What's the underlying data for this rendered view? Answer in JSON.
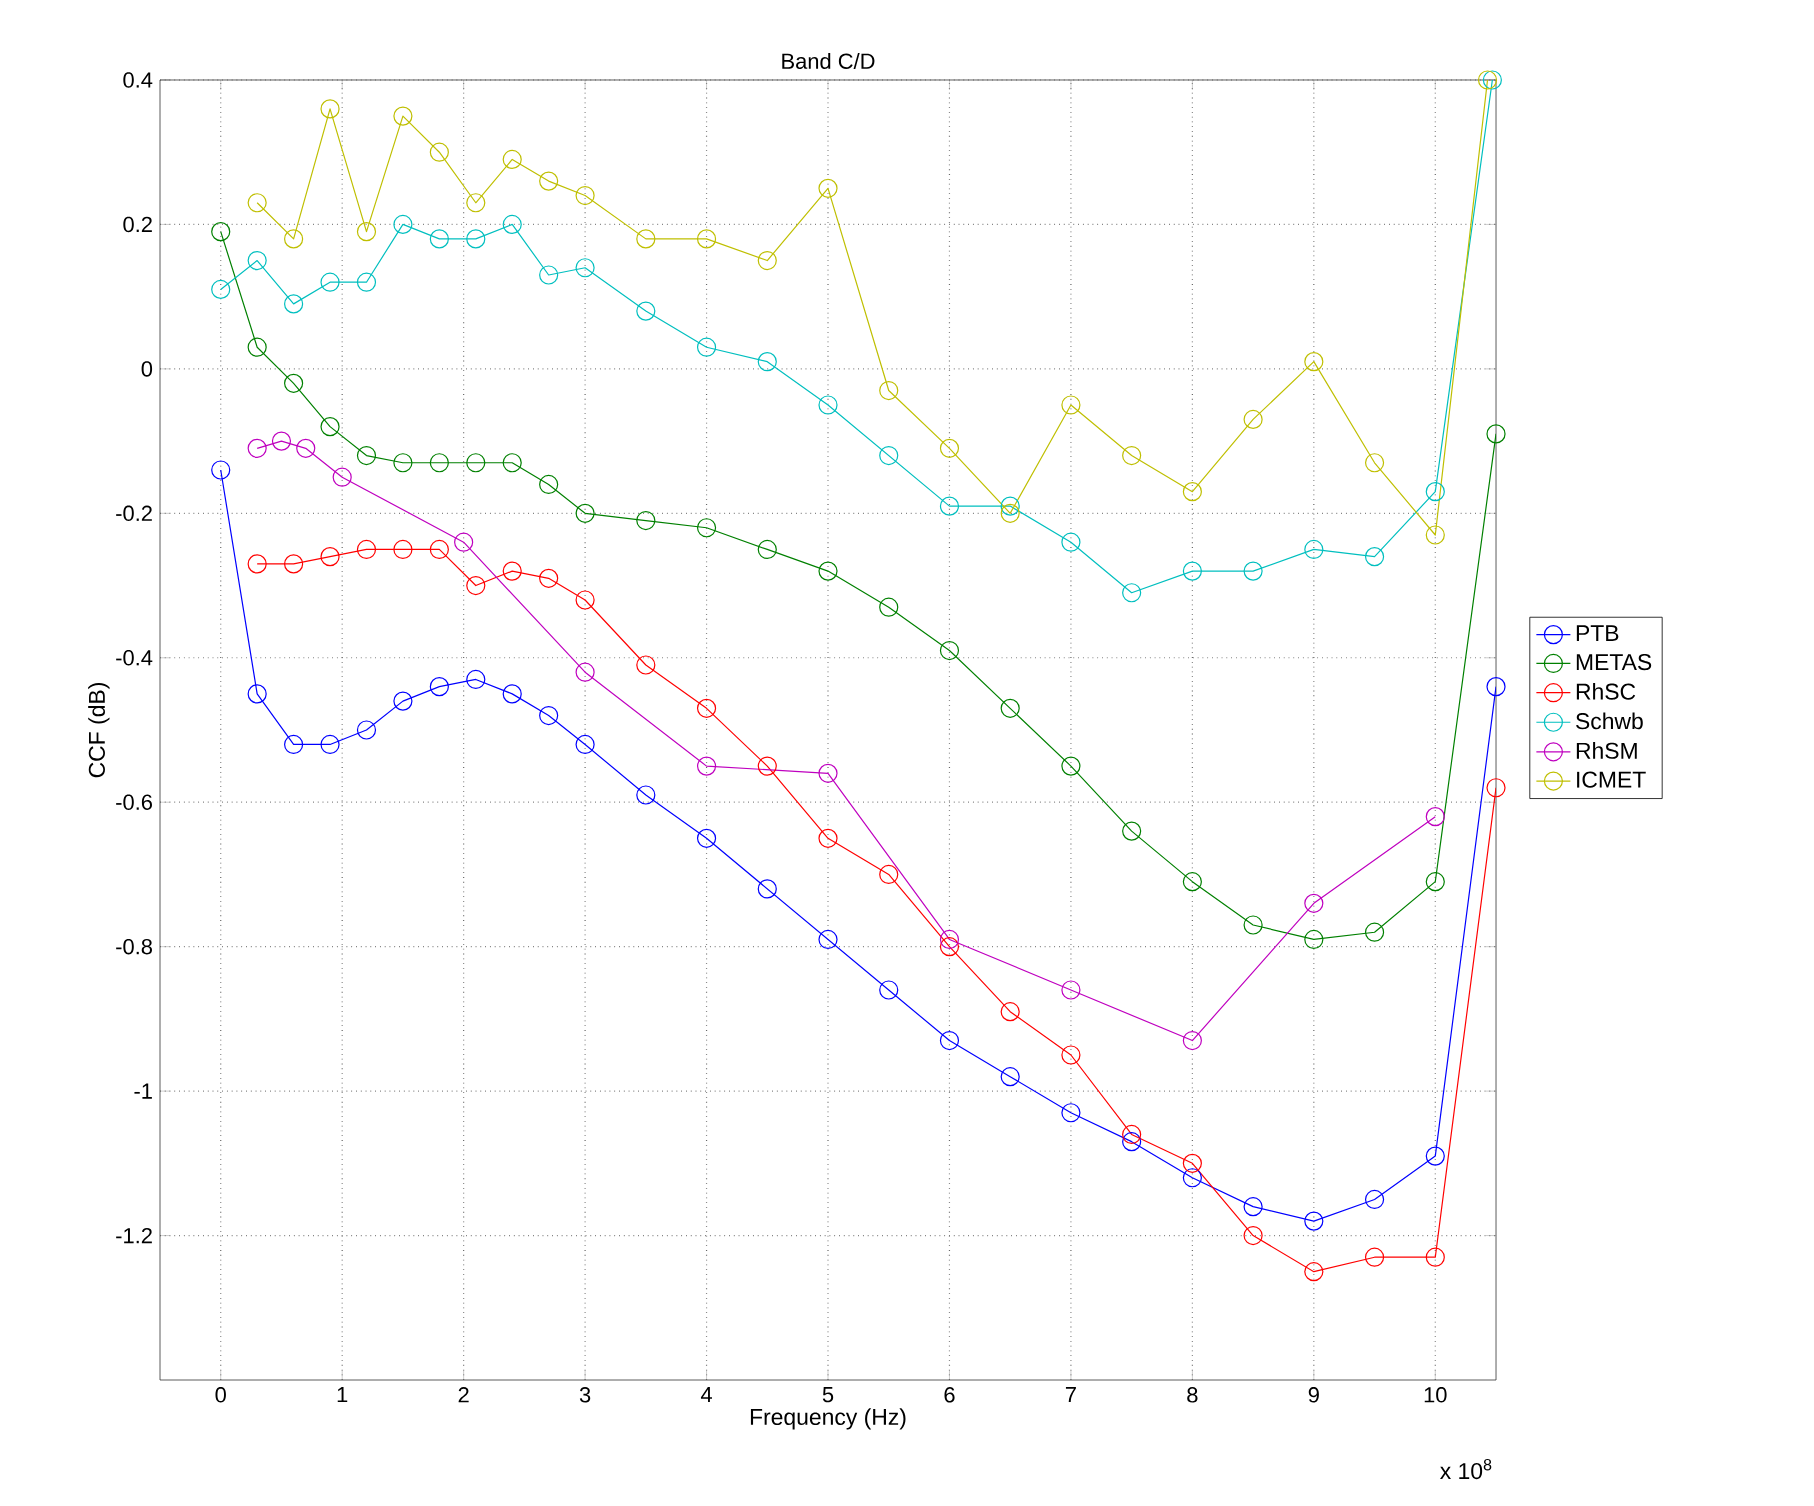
{
  "chart_data": {
    "type": "line",
    "title": "Band C/D",
    "xlabel": "Frequency (Hz)",
    "ylabel": "CCF (dB)",
    "annotations": [
      "x 10$^{8}$"
    ],
    "xlim": [
      -0.5,
      10.5
    ],
    "ylim": [
      -1.4,
      0.4
    ],
    "xticks": [
      0,
      1,
      2,
      3,
      4,
      5,
      6,
      7,
      8,
      9,
      10
    ],
    "yticks": [
      -1.2,
      -1,
      -0.8,
      -0.6,
      -0.4,
      -0.2,
      0,
      0.2,
      0.4
    ],
    "grid": true,
    "legend": "right",
    "marker": "circle",
    "line_style": "solid",
    "series": [
      {
        "name": "PTB",
        "color": "#0000ff",
        "x": [
          0,
          0.3,
          0.6,
          0.9,
          1.2,
          1.5,
          1.8,
          2.1,
          2.4,
          2.7,
          3,
          3.5,
          4,
          4.5,
          5,
          5.5,
          6,
          6.5,
          7,
          7.5,
          8,
          8.5,
          9,
          9.5,
          10,
          10.5
        ],
        "values": [
          -0.14,
          -0.45,
          -0.52,
          -0.52,
          -0.5,
          -0.46,
          -0.44,
          -0.43,
          -0.45,
          -0.48,
          -0.52,
          -0.59,
          -0.65,
          -0.72,
          -0.79,
          -0.86,
          -0.93,
          -0.98,
          -1.03,
          -1.07,
          -1.12,
          -1.16,
          -1.18,
          -1.15,
          -1.09,
          -0.44
        ]
      },
      {
        "name": "METAS",
        "color": "#008000",
        "x": [
          0,
          0.3,
          0.6,
          0.9,
          1.2,
          1.5,
          1.8,
          2.1,
          2.4,
          2.7,
          3,
          3.5,
          4,
          4.5,
          5,
          5.5,
          6,
          6.5,
          7,
          7.5,
          8,
          8.5,
          9,
          9.5,
          10,
          10.5
        ],
        "values": [
          0.19,
          0.03,
          -0.02,
          -0.08,
          -0.12,
          -0.13,
          -0.13,
          -0.13,
          -0.13,
          -0.16,
          -0.2,
          -0.21,
          -0.22,
          -0.25,
          -0.28,
          -0.33,
          -0.39,
          -0.47,
          -0.55,
          -0.64,
          -0.71,
          -0.77,
          -0.79,
          -0.78,
          -0.71,
          -0.09
        ]
      },
      {
        "name": "RhSC",
        "color": "#ff0000",
        "x": [
          0.3,
          0.6,
          0.9,
          1.2,
          1.5,
          1.8,
          2.1,
          2.4,
          2.7,
          3,
          3.5,
          4,
          4.5,
          5,
          5.5,
          6,
          6.5,
          7,
          7.5,
          8,
          8.5,
          9,
          9.5,
          10,
          10.5
        ],
        "values": [
          -0.27,
          -0.27,
          -0.26,
          -0.25,
          -0.25,
          -0.25,
          -0.3,
          -0.28,
          -0.29,
          -0.32,
          -0.41,
          -0.47,
          -0.55,
          -0.65,
          -0.7,
          -0.8,
          -0.89,
          -0.95,
          -1.06,
          -1.1,
          -1.2,
          -1.25,
          -1.23,
          -1.23,
          -0.58
        ]
      },
      {
        "name": "Schwb",
        "color": "#00bfbf",
        "x": [
          0,
          0.3,
          0.6,
          0.9,
          1.2,
          1.5,
          1.8,
          2.1,
          2.4,
          2.7,
          3,
          3.5,
          4,
          4.5,
          5,
          5.5,
          6,
          6.5,
          7,
          7.5,
          8,
          8.5,
          9,
          9.5,
          10,
          10.47
        ],
        "values": [
          0.11,
          0.15,
          0.09,
          0.12,
          0.12,
          0.2,
          0.18,
          0.18,
          0.2,
          0.13,
          0.14,
          0.08,
          0.03,
          0.01,
          -0.05,
          -0.12,
          -0.19,
          -0.19,
          -0.24,
          -0.31,
          -0.28,
          -0.28,
          -0.25,
          -0.26,
          -0.17,
          0.4
        ]
      },
      {
        "name": "RhSM",
        "color": "#bf00bf",
        "x": [
          0.3,
          0.5,
          0.7,
          1,
          2,
          3,
          4,
          5,
          6,
          7,
          8,
          9,
          10
        ],
        "values": [
          -0.11,
          -0.1,
          -0.11,
          -0.15,
          -0.24,
          -0.42,
          -0.55,
          -0.56,
          -0.79,
          -0.86,
          -0.93,
          -0.74,
          -0.62
        ]
      },
      {
        "name": "ICMET",
        "color": "#bfbf00",
        "x": [
          0.3,
          0.6,
          0.9,
          1.2,
          1.5,
          1.8,
          2.1,
          2.4,
          2.7,
          3,
          3.5,
          4,
          4.5,
          5,
          5.5,
          6,
          6.5,
          7,
          7.5,
          8,
          8.5,
          9,
          9.5,
          10,
          10.43
        ],
        "values": [
          0.23,
          0.18,
          0.36,
          0.19,
          0.35,
          0.3,
          0.23,
          0.29,
          0.26,
          0.24,
          0.18,
          0.18,
          0.15,
          0.25,
          -0.03,
          -0.11,
          -0.2,
          -0.05,
          -0.12,
          -0.17,
          -0.07,
          0.01,
          -0.13,
          -0.23,
          0.4
        ]
      }
    ]
  }
}
